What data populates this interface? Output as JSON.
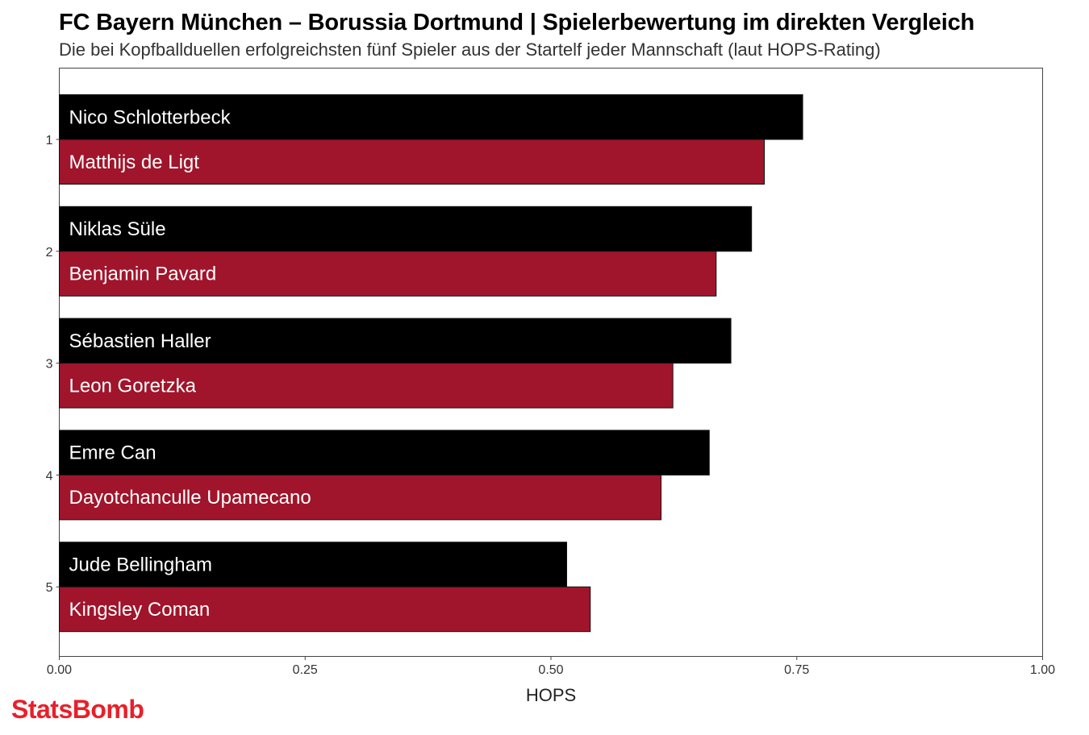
{
  "chart_data": {
    "type": "bar",
    "orientation": "horizontal",
    "title": "FC Bayern München – Borussia Dortmund | Spielerbewertung im direkten Vergleich",
    "subtitle": "Die bei Kopfballduellen erfolgreichsten fünf Spieler aus der Startelf jeder Mannschaft (laut HOPS-Rating)",
    "xlabel": "HOPS",
    "ylabel": "",
    "xlim": [
      0,
      1
    ],
    "xticks": [
      "0.00",
      "0.25",
      "0.50",
      "0.75",
      "1.00"
    ],
    "categories": [
      "1",
      "2",
      "3",
      "4",
      "5"
    ],
    "series": [
      {
        "color": "#000000",
        "players": [
          "Nico Schlotterbeck",
          "Niklas Süle",
          "Sébastien Haller",
          "Emre Can",
          "Jude Bellingham"
        ],
        "values": [
          0.756,
          0.704,
          0.683,
          0.661,
          0.516
        ]
      },
      {
        "color": "#a0152b",
        "players": [
          "Matthijs de Ligt",
          "Benjamin Pavard",
          "Leon Goretzka",
          "Dayotchanculle Upamecano",
          "Kingsley Coman"
        ],
        "values": [
          0.717,
          0.668,
          0.624,
          0.612,
          0.54
        ]
      }
    ],
    "grid": false,
    "legend": "none"
  },
  "branding": {
    "logo_text": "StatsBomb",
    "logo_color": "#e8202a"
  }
}
